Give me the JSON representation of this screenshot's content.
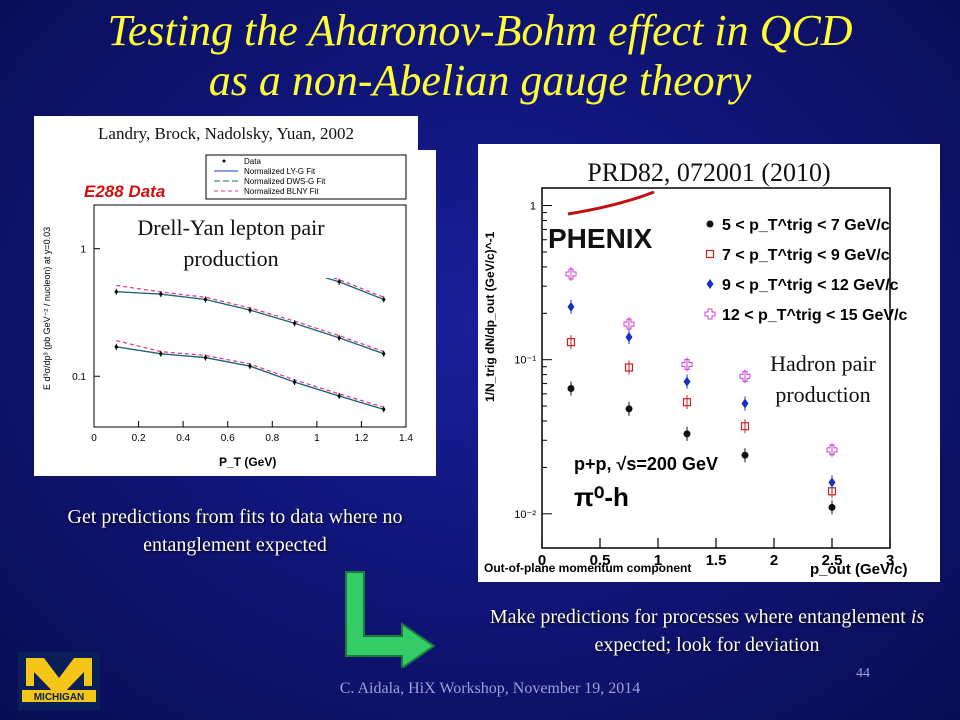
{
  "title": {
    "line1": "Testing the Aharonov-Bohm effect in QCD",
    "line2": "as a non-Abelian gauge theory"
  },
  "left_figure": {
    "citation": "Landry, Brock, Nadolsky, Yuan, 2002",
    "heading": "E288  Data",
    "overlay_label": "Drell-Yan lepton pair production",
    "legend": [
      "Data",
      "Normalized LY-G Fit",
      "Normalized DWS-G Fit",
      "Normalized BLNY Fit"
    ],
    "y_axis_label": "E d³σ/dp³ (pb GeV⁻² / nucleon)  at y=0.03",
    "x_axis_label": "P_T  (GeV)",
    "x_ticks": [
      "0",
      "0.2",
      "0.4",
      "0.6",
      "0.8",
      "1",
      "1.2",
      "1.4"
    ],
    "y_ticks": [
      "1",
      "0.1"
    ]
  },
  "right_figure": {
    "reference": "PRD82, 072001 (2010)",
    "experiment": "PHENIX",
    "overlay_label": "Hadron pair production",
    "legend": [
      "5 < p_T^trig < 7 GeV/c",
      "7 < p_T^trig < 9 GeV/c",
      "9 < p_T^trig < 12 GeV/c",
      "12 < p_T^trig < 15 GeV/c"
    ],
    "y_axis_label": "1/N_trig dN/dp_out (GeV/c)^-1",
    "x_axis_label": "p_out (GeV/c)",
    "x_axis_description": "Out-of-plane momentum component",
    "system": "p+p, √s=200 GeV",
    "reaction": "π⁰-h",
    "x_ticks": [
      "0",
      "0.5",
      "1",
      "1.5",
      "2",
      "2.5",
      "3"
    ],
    "y_ticks": [
      "1",
      "10⁻¹",
      "10⁻²"
    ]
  },
  "captions": {
    "left": "Get predictions from fits to data where no entanglement expected",
    "right_pre": "Make predictions for processes where entanglement ",
    "right_em": "is",
    "right_post": " expected; look for deviation"
  },
  "footer": "C. Aidala, HiX Workshop, November 19, 2014",
  "page_number": "44",
  "logo_text": "MICHIGAN",
  "colors": {
    "title": "#ffff33",
    "background": "#10157a",
    "arrow": "#33cc66",
    "logo_blue": "#0a1e5a",
    "logo_maize": "#f5c518"
  },
  "chart_data": [
    {
      "type": "scatter",
      "title": "E288  Data",
      "xlabel": "P_T (GeV)",
      "ylabel": "E d³σ/dp³ (pb GeV⁻²/nucleon)",
      "xlim": [
        0,
        1.4
      ],
      "y_scale": "log",
      "series": [
        {
          "name": "Data",
          "x": [
            0.1,
            0.3,
            0.5,
            0.7,
            0.9,
            1.1,
            1.3
          ],
          "values": [
            1.4,
            1.2,
            1.0,
            0.85,
            0.7,
            0.55,
            0.4
          ]
        },
        {
          "name": "Data",
          "x": [
            0.1,
            0.3,
            0.5,
            0.7,
            0.9,
            1.1,
            1.3
          ],
          "values": [
            0.46,
            0.44,
            0.4,
            0.33,
            0.26,
            0.2,
            0.15
          ]
        },
        {
          "name": "Data",
          "x": [
            0.1,
            0.3,
            0.5,
            0.7,
            0.9,
            1.1,
            1.3
          ],
          "values": [
            0.17,
            0.15,
            0.14,
            0.12,
            0.09,
            0.07,
            0.055
          ]
        }
      ]
    },
    {
      "type": "scatter",
      "xlabel": "p_out (GeV/c)",
      "ylabel": "1/N_trig dN/dp_out (GeV/c)^-1",
      "xlim": [
        0,
        3
      ],
      "ylim": [
        0.006,
        1.3
      ],
      "y_scale": "log",
      "series": [
        {
          "name": "5 < p_T^trig < 7 GeV/c",
          "x": [
            0.25,
            0.75,
            1.25,
            1.75,
            2.5
          ],
          "values": [
            0.065,
            0.048,
            0.033,
            0.024,
            0.011
          ]
        },
        {
          "name": "7 < p_T^trig < 9 GeV/c",
          "x": [
            0.25,
            0.75,
            1.25,
            1.75,
            2.5
          ],
          "values": [
            0.13,
            0.089,
            0.053,
            0.037,
            0.014
          ]
        },
        {
          "name": "9 < p_T^trig < 12 GeV/c",
          "x": [
            0.25,
            0.75,
            1.25,
            1.75,
            2.5
          ],
          "values": [
            0.22,
            0.14,
            0.072,
            0.052,
            0.016
          ]
        },
        {
          "name": "12 < p_T^trig < 15 GeV/c",
          "x": [
            0.25,
            0.75,
            1.25,
            1.75,
            2.5
          ],
          "values": [
            0.36,
            0.17,
            0.093,
            0.078,
            0.026
          ]
        }
      ]
    }
  ]
}
